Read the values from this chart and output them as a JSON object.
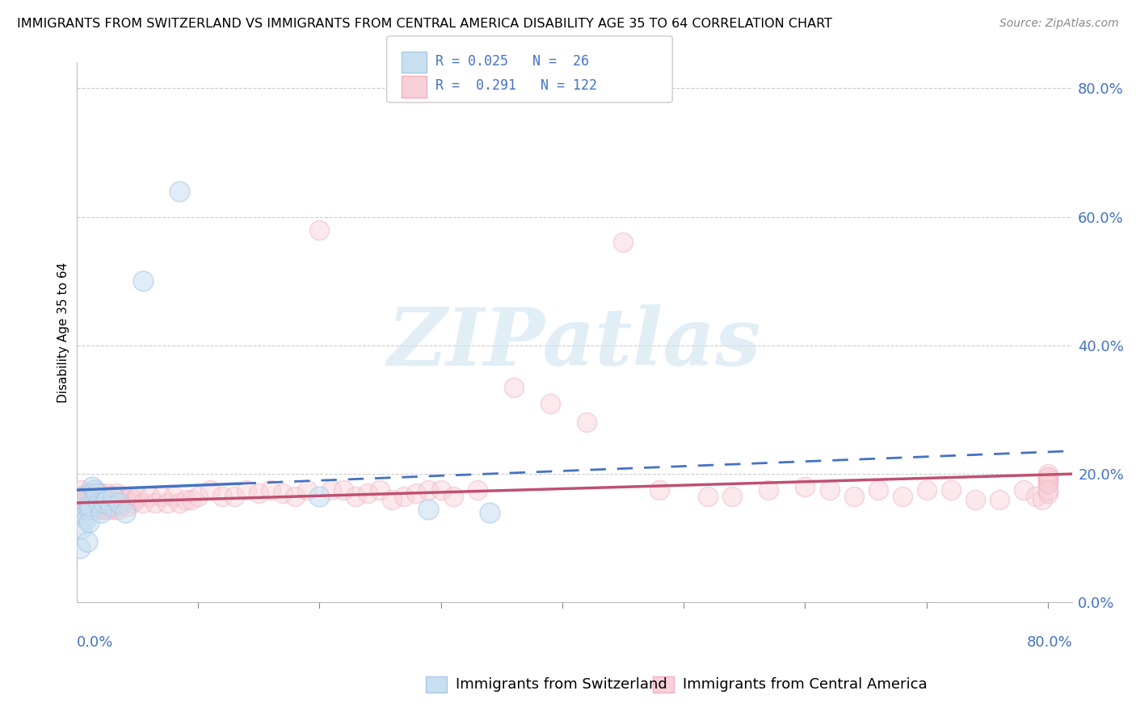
{
  "title": "IMMIGRANTS FROM SWITZERLAND VS IMMIGRANTS FROM CENTRAL AMERICA DISABILITY AGE 35 TO 64 CORRELATION CHART",
  "source": "Source: ZipAtlas.com",
  "ylabel": "Disability Age 35 to 64",
  "y_ticks_right": [
    0.0,
    0.2,
    0.4,
    0.6,
    0.8
  ],
  "y_tick_labels_right": [
    "0.0%",
    "20.0%",
    "40.0%",
    "60.0%",
    "80.0%"
  ],
  "legend1_label": "R = 0.025   N =  26",
  "legend2_label": "R =  0.291   N = 122",
  "bottom_legend1": "Immigrants from Switzerland",
  "bottom_legend2": "Immigrants from Central America",
  "color_swiss": "#a8c8e8",
  "color_swiss_fill": "#c8dff0",
  "color_swiss_line": "#4472c4",
  "color_ca": "#f0b0c0",
  "color_ca_fill": "#f8d0d8",
  "color_ca_line": "#c05070",
  "background": "#ffffff",
  "grid_color": "#cccccc",
  "xlim": [
    0.0,
    0.82
  ],
  "ylim": [
    0.0,
    0.84
  ],
  "swiss_x": [
    0.003,
    0.004,
    0.005,
    0.006,
    0.007,
    0.008,
    0.009,
    0.01,
    0.01,
    0.011,
    0.013,
    0.015,
    0.016,
    0.018,
    0.02,
    0.022,
    0.025,
    0.028,
    0.03,
    0.035,
    0.04,
    0.055,
    0.085,
    0.2,
    0.29,
    0.34
  ],
  "swiss_y": [
    0.085,
    0.115,
    0.14,
    0.165,
    0.135,
    0.13,
    0.095,
    0.145,
    0.125,
    0.15,
    0.18,
    0.175,
    0.17,
    0.155,
    0.14,
    0.155,
    0.16,
    0.15,
    0.165,
    0.155,
    0.14,
    0.5,
    0.64,
    0.165,
    0.145,
    0.14
  ],
  "ca_x": [
    0.002,
    0.003,
    0.004,
    0.004,
    0.005,
    0.005,
    0.006,
    0.006,
    0.007,
    0.007,
    0.008,
    0.008,
    0.009,
    0.009,
    0.01,
    0.01,
    0.011,
    0.011,
    0.012,
    0.012,
    0.013,
    0.013,
    0.014,
    0.014,
    0.015,
    0.015,
    0.016,
    0.016,
    0.017,
    0.017,
    0.018,
    0.018,
    0.019,
    0.019,
    0.02,
    0.02,
    0.021,
    0.021,
    0.022,
    0.022,
    0.023,
    0.024,
    0.025,
    0.025,
    0.026,
    0.027,
    0.028,
    0.029,
    0.03,
    0.03,
    0.032,
    0.033,
    0.034,
    0.035,
    0.036,
    0.038,
    0.04,
    0.042,
    0.044,
    0.046,
    0.048,
    0.05,
    0.055,
    0.06,
    0.065,
    0.07,
    0.075,
    0.08,
    0.085,
    0.09,
    0.095,
    0.1,
    0.11,
    0.12,
    0.13,
    0.14,
    0.15,
    0.16,
    0.17,
    0.18,
    0.19,
    0.2,
    0.21,
    0.22,
    0.23,
    0.24,
    0.25,
    0.26,
    0.27,
    0.28,
    0.29,
    0.3,
    0.31,
    0.33,
    0.36,
    0.39,
    0.42,
    0.45,
    0.48,
    0.52,
    0.54,
    0.57,
    0.6,
    0.62,
    0.64,
    0.66,
    0.68,
    0.7,
    0.72,
    0.74,
    0.76,
    0.78,
    0.79,
    0.795,
    0.8,
    0.8,
    0.8,
    0.8,
    0.8,
    0.8,
    0.8,
    0.8
  ],
  "ca_y": [
    0.165,
    0.155,
    0.145,
    0.175,
    0.16,
    0.155,
    0.15,
    0.165,
    0.155,
    0.16,
    0.155,
    0.17,
    0.15,
    0.165,
    0.155,
    0.17,
    0.145,
    0.165,
    0.15,
    0.165,
    0.155,
    0.17,
    0.145,
    0.165,
    0.15,
    0.165,
    0.155,
    0.17,
    0.145,
    0.165,
    0.15,
    0.165,
    0.155,
    0.17,
    0.145,
    0.17,
    0.155,
    0.165,
    0.145,
    0.165,
    0.15,
    0.165,
    0.155,
    0.17,
    0.145,
    0.16,
    0.15,
    0.165,
    0.145,
    0.165,
    0.155,
    0.17,
    0.145,
    0.165,
    0.15,
    0.165,
    0.16,
    0.15,
    0.165,
    0.155,
    0.16,
    0.165,
    0.155,
    0.165,
    0.155,
    0.165,
    0.155,
    0.165,
    0.155,
    0.16,
    0.16,
    0.165,
    0.175,
    0.165,
    0.165,
    0.175,
    0.17,
    0.175,
    0.17,
    0.165,
    0.175,
    0.58,
    0.175,
    0.175,
    0.165,
    0.17,
    0.175,
    0.16,
    0.165,
    0.17,
    0.175,
    0.175,
    0.165,
    0.175,
    0.335,
    0.31,
    0.28,
    0.56,
    0.175,
    0.165,
    0.165,
    0.175,
    0.18,
    0.175,
    0.165,
    0.175,
    0.165,
    0.175,
    0.175,
    0.16,
    0.16,
    0.175,
    0.165,
    0.16,
    0.17,
    0.185,
    0.19,
    0.195,
    0.2,
    0.195,
    0.185,
    0.175
  ],
  "swiss_trend_x0": 0.0,
  "swiss_trend_y0": 0.175,
  "swiss_trend_x1": 0.135,
  "swiss_trend_y1": 0.185,
  "swiss_trend_solid_end": 0.135,
  "swiss_trend_dash_end": 0.82,
  "ca_trend_x0": 0.0,
  "ca_trend_y0": 0.155,
  "ca_trend_x1": 0.82,
  "ca_trend_y1": 0.2,
  "watermark_text": "ZIPatlas",
  "title_fontsize": 11.5,
  "source_fontsize": 10,
  "axis_label_fontsize": 13,
  "legend_fontsize": 13
}
